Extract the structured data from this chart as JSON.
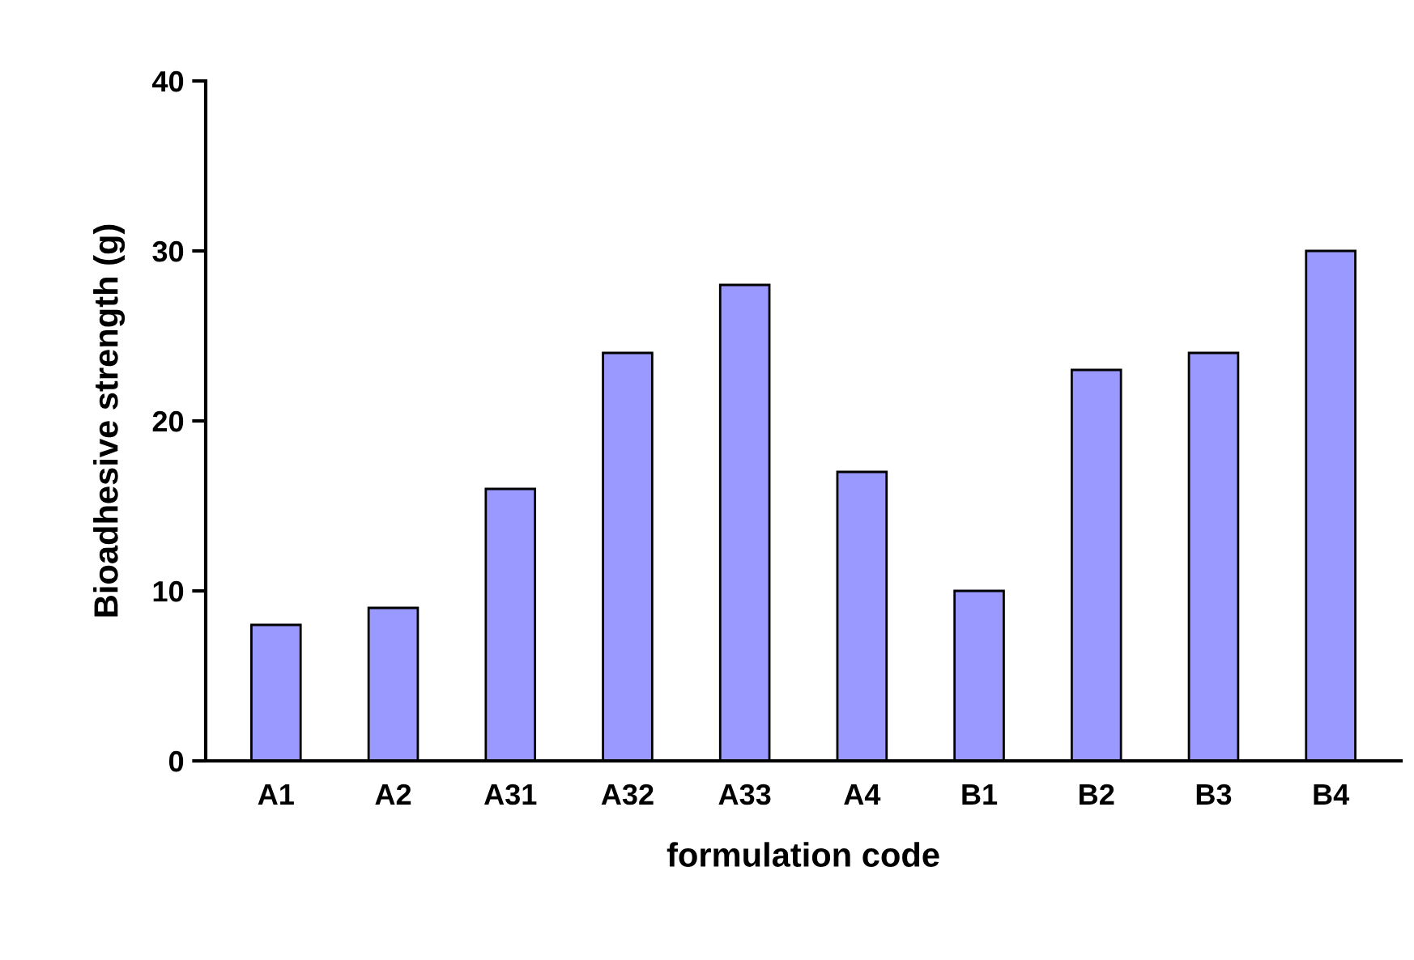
{
  "chart_data": {
    "type": "bar",
    "xlabel": "formulation code",
    "ylabel": "Bioadhesive strength (g)",
    "categories": [
      "A1",
      "A2",
      "A31",
      "A32",
      "A33",
      "A4",
      "B1",
      "B2",
      "B3",
      "B4"
    ],
    "values": [
      8,
      9,
      16,
      24,
      28,
      17,
      10,
      23,
      24,
      30
    ],
    "color": "#9999ff",
    "ylim": [
      0,
      40
    ],
    "yticks": [
      0,
      10,
      20,
      30,
      40
    ],
    "grid": false,
    "legend": false
  }
}
